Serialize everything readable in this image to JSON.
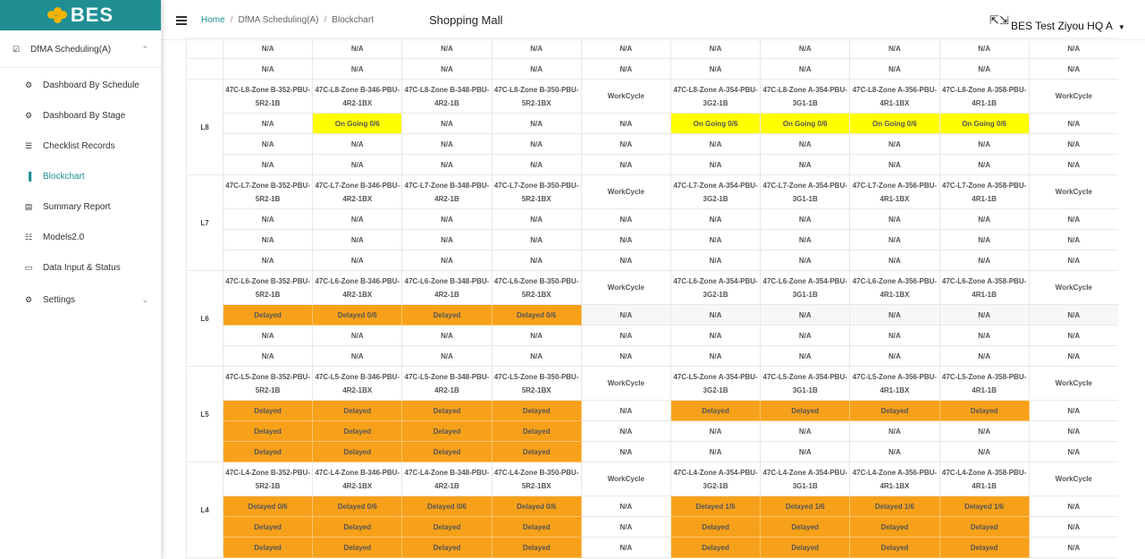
{
  "logo": {
    "text": "BES"
  },
  "sidebar": {
    "parent": {
      "label": "DfMA Scheduling(A)",
      "icon": "checkbox-icon"
    },
    "items": [
      {
        "id": "dashboard-schedule",
        "label": "Dashboard By Schedule",
        "icon": "dashboard-icon",
        "active": false
      },
      {
        "id": "dashboard-stage",
        "label": "Dashboard By Stage",
        "icon": "dashboard-icon",
        "active": false
      },
      {
        "id": "checklist",
        "label": "Checklist Records",
        "icon": "list-icon",
        "active": false
      },
      {
        "id": "blockchart",
        "label": "Blockchart",
        "icon": "bar-chart-icon",
        "active": true
      },
      {
        "id": "summary",
        "label": "Summary Report",
        "icon": "report-icon",
        "active": false
      },
      {
        "id": "models",
        "label": "Models2.0",
        "icon": "hierarchy-icon",
        "active": false
      },
      {
        "id": "data-input",
        "label": "Data Input & Status",
        "icon": "monitor-icon",
        "active": false
      },
      {
        "id": "settings",
        "label": "Settings",
        "icon": "gear-icon",
        "active": false,
        "expandable": true
      }
    ]
  },
  "header": {
    "breadcrumb": [
      "Home",
      "DfMA Scheduling(A)",
      "Blockchart"
    ],
    "title": "Shopping Mall",
    "user": "BES Test Ziyou HQ A"
  },
  "colors": {
    "teal": "#1f8f94",
    "ongoing": "#ffff00",
    "delayed": "#f7a11a"
  },
  "blockchart": {
    "top_rows": [
      [
        "N/A",
        "N/A",
        "N/A",
        "N/A",
        "N/A",
        "N/A",
        "N/A",
        "N/A",
        "N/A",
        "N/A"
      ],
      [
        "N/A",
        "N/A",
        "N/A",
        "N/A",
        "N/A",
        "N/A",
        "N/A",
        "N/A",
        "N/A",
        "N/A"
      ]
    ],
    "levels": [
      {
        "name": "L8",
        "headers": [
          "47C-L8-Zone B-352-PBU-5R2-1B",
          "47C-L8-Zone B-346-PBU-4R2-1BX",
          "47C-L8-Zone B-348-PBU-4R2-1B",
          "47C-L8-Zone B-350-PBU-5R2-1BX",
          "WorkCycle",
          "47C-L8-Zone A-354-PBU-3G2-1B",
          "47C-L8-Zone A-354-PBU-3G1-1B",
          "47C-L8-Zone A-356-PBU-4R1-1BX",
          "47C-L8-Zone A-358-PBU-4R1-1B",
          "WorkCycle"
        ],
        "rows": [
          [
            {
              "t": "N/A",
              "s": ""
            },
            {
              "t": "On Going 0/6",
              "s": "ongoing"
            },
            {
              "t": "N/A",
              "s": ""
            },
            {
              "t": "N/A",
              "s": ""
            },
            {
              "t": "N/A",
              "s": ""
            },
            {
              "t": "On Going 0/6",
              "s": "ongoing"
            },
            {
              "t": "On Going 0/6",
              "s": "ongoing"
            },
            {
              "t": "On Going 0/6",
              "s": "ongoing"
            },
            {
              "t": "On Going 0/6",
              "s": "ongoing"
            },
            {
              "t": "N/A",
              "s": ""
            }
          ],
          [
            {
              "t": "N/A",
              "s": ""
            },
            {
              "t": "N/A",
              "s": ""
            },
            {
              "t": "N/A",
              "s": ""
            },
            {
              "t": "N/A",
              "s": ""
            },
            {
              "t": "N/A",
              "s": ""
            },
            {
              "t": "N/A",
              "s": ""
            },
            {
              "t": "N/A",
              "s": ""
            },
            {
              "t": "N/A",
              "s": ""
            },
            {
              "t": "N/A",
              "s": ""
            },
            {
              "t": "N/A",
              "s": ""
            }
          ],
          [
            {
              "t": "N/A",
              "s": ""
            },
            {
              "t": "N/A",
              "s": ""
            },
            {
              "t": "N/A",
              "s": ""
            },
            {
              "t": "N/A",
              "s": ""
            },
            {
              "t": "N/A",
              "s": ""
            },
            {
              "t": "N/A",
              "s": ""
            },
            {
              "t": "N/A",
              "s": ""
            },
            {
              "t": "N/A",
              "s": ""
            },
            {
              "t": "N/A",
              "s": ""
            },
            {
              "t": "N/A",
              "s": ""
            }
          ]
        ]
      },
      {
        "name": "L7",
        "headers": [
          "47C-L7-Zone B-352-PBU-5R2-1B",
          "47C-L7-Zone B-346-PBU-4R2-1BX",
          "47C-L7-Zone B-348-PBU-4R2-1B",
          "47C-L7-Zone B-350-PBU-5R2-1BX",
          "WorkCycle",
          "47C-L7-Zone A-354-PBU-3G2-1B",
          "47C-L7-Zone A-354-PBU-3G1-1B",
          "47C-L7-Zone A-356-PBU-4R1-1BX",
          "47C-L7-Zone A-358-PBU-4R1-1B",
          "WorkCycle"
        ],
        "rows": [
          [
            {
              "t": "N/A",
              "s": ""
            },
            {
              "t": "N/A",
              "s": ""
            },
            {
              "t": "N/A",
              "s": ""
            },
            {
              "t": "N/A",
              "s": ""
            },
            {
              "t": "N/A",
              "s": ""
            },
            {
              "t": "N/A",
              "s": ""
            },
            {
              "t": "N/A",
              "s": ""
            },
            {
              "t": "N/A",
              "s": ""
            },
            {
              "t": "N/A",
              "s": ""
            },
            {
              "t": "N/A",
              "s": ""
            }
          ],
          [
            {
              "t": "N/A",
              "s": ""
            },
            {
              "t": "N/A",
              "s": ""
            },
            {
              "t": "N/A",
              "s": ""
            },
            {
              "t": "N/A",
              "s": ""
            },
            {
              "t": "N/A",
              "s": ""
            },
            {
              "t": "N/A",
              "s": ""
            },
            {
              "t": "N/A",
              "s": ""
            },
            {
              "t": "N/A",
              "s": ""
            },
            {
              "t": "N/A",
              "s": ""
            },
            {
              "t": "N/A",
              "s": ""
            }
          ],
          [
            {
              "t": "N/A",
              "s": ""
            },
            {
              "t": "N/A",
              "s": ""
            },
            {
              "t": "N/A",
              "s": ""
            },
            {
              "t": "N/A",
              "s": ""
            },
            {
              "t": "N/A",
              "s": ""
            },
            {
              "t": "N/A",
              "s": ""
            },
            {
              "t": "N/A",
              "s": ""
            },
            {
              "t": "N/A",
              "s": ""
            },
            {
              "t": "N/A",
              "s": ""
            },
            {
              "t": "N/A",
              "s": ""
            }
          ]
        ]
      },
      {
        "name": "L6",
        "headers": [
          "47C-L6-Zone B-352-PBU-5R2-1B",
          "47C-L6-Zone B-346-PBU-4R2-1BX",
          "47C-L6-Zone B-348-PBU-4R2-1B",
          "47C-L6-Zone B-350-PBU-5R2-1BX",
          "WorkCycle",
          "47C-L6-Zone A-354-PBU-3G2-1B",
          "47C-L6-Zone A-354-PBU-3G1-1B",
          "47C-L6-Zone A-356-PBU-4R1-1BX",
          "47C-L6-Zone A-358-PBU-4R1-1B",
          "WorkCycle"
        ],
        "rows": [
          [
            {
              "t": "Delayed",
              "s": "delayed"
            },
            {
              "t": "Delayed 0/6",
              "s": "delayed"
            },
            {
              "t": "Delayed",
              "s": "delayed"
            },
            {
              "t": "Delayed 0/6",
              "s": "delayed"
            },
            {
              "t": "N/A",
              "s": "gray"
            },
            {
              "t": "N/A",
              "s": "gray"
            },
            {
              "t": "N/A",
              "s": "gray"
            },
            {
              "t": "N/A",
              "s": "gray"
            },
            {
              "t": "N/A",
              "s": "gray"
            },
            {
              "t": "N/A",
              "s": "gray"
            }
          ],
          [
            {
              "t": "N/A",
              "s": ""
            },
            {
              "t": "N/A",
              "s": ""
            },
            {
              "t": "N/A",
              "s": ""
            },
            {
              "t": "N/A",
              "s": ""
            },
            {
              "t": "N/A",
              "s": ""
            },
            {
              "t": "N/A",
              "s": ""
            },
            {
              "t": "N/A",
              "s": ""
            },
            {
              "t": "N/A",
              "s": ""
            },
            {
              "t": "N/A",
              "s": ""
            },
            {
              "t": "N/A",
              "s": ""
            }
          ],
          [
            {
              "t": "N/A",
              "s": ""
            },
            {
              "t": "N/A",
              "s": ""
            },
            {
              "t": "N/A",
              "s": ""
            },
            {
              "t": "N/A",
              "s": ""
            },
            {
              "t": "N/A",
              "s": ""
            },
            {
              "t": "N/A",
              "s": ""
            },
            {
              "t": "N/A",
              "s": ""
            },
            {
              "t": "N/A",
              "s": ""
            },
            {
              "t": "N/A",
              "s": ""
            },
            {
              "t": "N/A",
              "s": ""
            }
          ]
        ]
      },
      {
        "name": "L5",
        "headers": [
          "47C-L5-Zone B-352-PBU-5R2-1B",
          "47C-L5-Zone B-346-PBU-4R2-1BX",
          "47C-L5-Zone B-348-PBU-4R2-1B",
          "47C-L5-Zone B-350-PBU-5R2-1BX",
          "WorkCycle",
          "47C-L5-Zone A-354-PBU-3G2-1B",
          "47C-L5-Zone A-354-PBU-3G1-1B",
          "47C-L5-Zone A-356-PBU-4R1-1BX",
          "47C-L5-Zone A-358-PBU-4R1-1B",
          "WorkCycle"
        ],
        "rows": [
          [
            {
              "t": "Delayed",
              "s": "delayed"
            },
            {
              "t": "Delayed",
              "s": "delayed"
            },
            {
              "t": "Delayed",
              "s": "delayed"
            },
            {
              "t": "Delayed",
              "s": "delayed"
            },
            {
              "t": "N/A",
              "s": ""
            },
            {
              "t": "Delayed",
              "s": "delayed"
            },
            {
              "t": "Delayed",
              "s": "delayed"
            },
            {
              "t": "Delayed",
              "s": "delayed"
            },
            {
              "t": "Delayed",
              "s": "delayed"
            },
            {
              "t": "N/A",
              "s": ""
            }
          ],
          [
            {
              "t": "Delayed",
              "s": "delayed"
            },
            {
              "t": "Delayed",
              "s": "delayed"
            },
            {
              "t": "Delayed",
              "s": "delayed"
            },
            {
              "t": "Delayed",
              "s": "delayed"
            },
            {
              "t": "N/A",
              "s": ""
            },
            {
              "t": "N/A",
              "s": ""
            },
            {
              "t": "N/A",
              "s": ""
            },
            {
              "t": "N/A",
              "s": ""
            },
            {
              "t": "N/A",
              "s": ""
            },
            {
              "t": "N/A",
              "s": ""
            }
          ],
          [
            {
              "t": "Delayed",
              "s": "delayed"
            },
            {
              "t": "Delayed",
              "s": "delayed"
            },
            {
              "t": "Delayed",
              "s": "delayed"
            },
            {
              "t": "Delayed",
              "s": "delayed"
            },
            {
              "t": "N/A",
              "s": ""
            },
            {
              "t": "N/A",
              "s": ""
            },
            {
              "t": "N/A",
              "s": ""
            },
            {
              "t": "N/A",
              "s": ""
            },
            {
              "t": "N/A",
              "s": ""
            },
            {
              "t": "N/A",
              "s": ""
            }
          ]
        ]
      },
      {
        "name": "L4",
        "headers": [
          "47C-L4-Zone B-352-PBU-5R2-1B",
          "47C-L4-Zone B-346-PBU-4R2-1BX",
          "47C-L4-Zone B-348-PBU-4R2-1B",
          "47C-L4-Zone B-350-PBU-5R2-1BX",
          "WorkCycle",
          "47C-L4-Zone A-354-PBU-3G2-1B",
          "47C-L4-Zone A-354-PBU-3G1-1B",
          "47C-L4-Zone A-356-PBU-4R1-1BX",
          "47C-L4-Zone A-358-PBU-4R1-1B",
          "WorkCycle"
        ],
        "rows": [
          [
            {
              "t": "Delayed 0/6",
              "s": "delayed"
            },
            {
              "t": "Delayed 0/6",
              "s": "delayed"
            },
            {
              "t": "Delayed 0/6",
              "s": "delayed"
            },
            {
              "t": "Delayed 0/6",
              "s": "delayed"
            },
            {
              "t": "N/A",
              "s": ""
            },
            {
              "t": "Delayed 1/6",
              "s": "delayed"
            },
            {
              "t": "Delayed 1/6",
              "s": "delayed"
            },
            {
              "t": "Delayed 1/6",
              "s": "delayed"
            },
            {
              "t": "Delayed 1/6",
              "s": "delayed"
            },
            {
              "t": "N/A",
              "s": ""
            }
          ],
          [
            {
              "t": "Delayed",
              "s": "delayed"
            },
            {
              "t": "Delayed",
              "s": "delayed"
            },
            {
              "t": "Delayed",
              "s": "delayed"
            },
            {
              "t": "Delayed",
              "s": "delayed"
            },
            {
              "t": "N/A",
              "s": ""
            },
            {
              "t": "Delayed",
              "s": "delayed"
            },
            {
              "t": "Delayed",
              "s": "delayed"
            },
            {
              "t": "Delayed",
              "s": "delayed"
            },
            {
              "t": "Delayed",
              "s": "delayed"
            },
            {
              "t": "N/A",
              "s": ""
            }
          ],
          [
            {
              "t": "Delayed",
              "s": "delayed"
            },
            {
              "t": "Delayed",
              "s": "delayed"
            },
            {
              "t": "Delayed",
              "s": "delayed"
            },
            {
              "t": "Delayed",
              "s": "delayed"
            },
            {
              "t": "N/A",
              "s": ""
            },
            {
              "t": "Delayed",
              "s": "delayed"
            },
            {
              "t": "Delayed",
              "s": "delayed"
            },
            {
              "t": "Delayed",
              "s": "delayed"
            },
            {
              "t": "Delayed",
              "s": "delayed"
            },
            {
              "t": "N/A",
              "s": ""
            }
          ]
        ]
      }
    ]
  }
}
